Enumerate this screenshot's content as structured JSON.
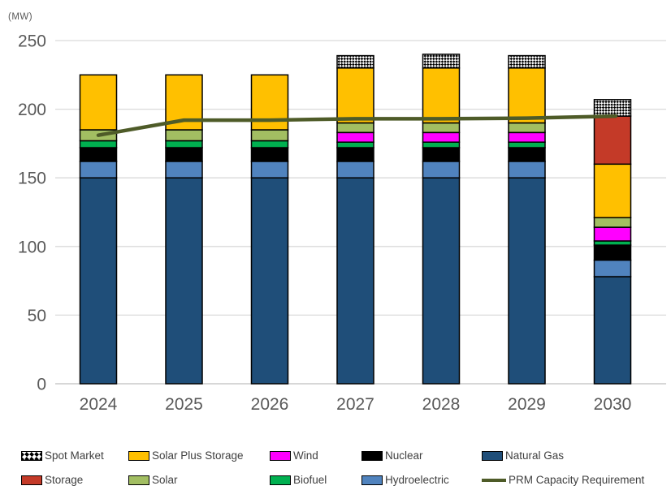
{
  "chart_data": {
    "type": "bar",
    "stacked": true,
    "unit_label": "(MW)",
    "categories": [
      "2024",
      "2025",
      "2026",
      "2027",
      "2028",
      "2029",
      "2030"
    ],
    "series": [
      {
        "name": "Natural Gas",
        "color": "#1F4E79",
        "values": [
          150,
          150,
          150,
          150,
          150,
          150,
          78
        ]
      },
      {
        "name": "Hydroelectric",
        "color": "#5083BE",
        "values": [
          12,
          12,
          12,
          12,
          12,
          12,
          12
        ]
      },
      {
        "name": "Nuclear",
        "color": "#000000",
        "values": [
          10,
          10,
          10,
          10,
          10,
          10,
          11
        ]
      },
      {
        "name": "Biofuel",
        "color": "#00B050",
        "values": [
          5,
          5,
          5,
          4,
          4,
          4,
          3
        ]
      },
      {
        "name": "Wind",
        "color": "#FF00FF",
        "values": [
          0,
          0,
          0,
          7,
          7,
          7,
          10
        ]
      },
      {
        "name": "Solar",
        "color": "#A2BE62",
        "values": [
          8,
          8,
          8,
          7,
          7,
          7,
          7
        ]
      },
      {
        "name": "Solar Plus Storage",
        "color": "#FFC000",
        "values": [
          40,
          40,
          40,
          40,
          40,
          40,
          39
        ]
      },
      {
        "name": "Storage",
        "color": "#C43A28",
        "values": [
          0,
          0,
          0,
          0,
          0,
          0,
          35
        ]
      },
      {
        "name": "Spot Market",
        "color": "pattern-checker",
        "values": [
          0,
          0,
          0,
          9,
          10,
          9,
          12
        ]
      }
    ],
    "line_series": {
      "name": "PRM Capacity Requirement",
      "color": "#4E5B28",
      "values": [
        181,
        192,
        192,
        193,
        193,
        193.5,
        195
      ]
    },
    "totals": [
      225,
      225,
      225,
      239,
      240,
      239,
      207
    ],
    "ylim": [
      0,
      250
    ],
    "yticks": [
      "0",
      "50",
      "100",
      "150",
      "200",
      "250"
    ],
    "ytick_values": [
      0,
      50,
      100,
      150,
      200,
      250
    ],
    "xlabel": "",
    "ylabel": "(MW)",
    "grid": true,
    "legend_position": "bottom"
  },
  "legend": {
    "items": [
      {
        "name": "Spot Market",
        "kind": "pattern"
      },
      {
        "name": "Solar Plus Storage",
        "kind": "box"
      },
      {
        "name": "Wind",
        "kind": "box"
      },
      {
        "name": "Nuclear",
        "kind": "box"
      },
      {
        "name": "Natural Gas",
        "kind": "box"
      },
      {
        "name": "Storage",
        "kind": "box"
      },
      {
        "name": "Solar",
        "kind": "box"
      },
      {
        "name": "Biofuel",
        "kind": "box"
      },
      {
        "name": "Hydroelectric",
        "kind": "box"
      },
      {
        "name": "PRM Capacity Requirement",
        "kind": "line"
      }
    ]
  },
  "style_colors": {
    "gridline": "#D9D9D9",
    "baseline": "#BFBFBF",
    "axis_text": "#595959",
    "legend_text": "#404040"
  }
}
